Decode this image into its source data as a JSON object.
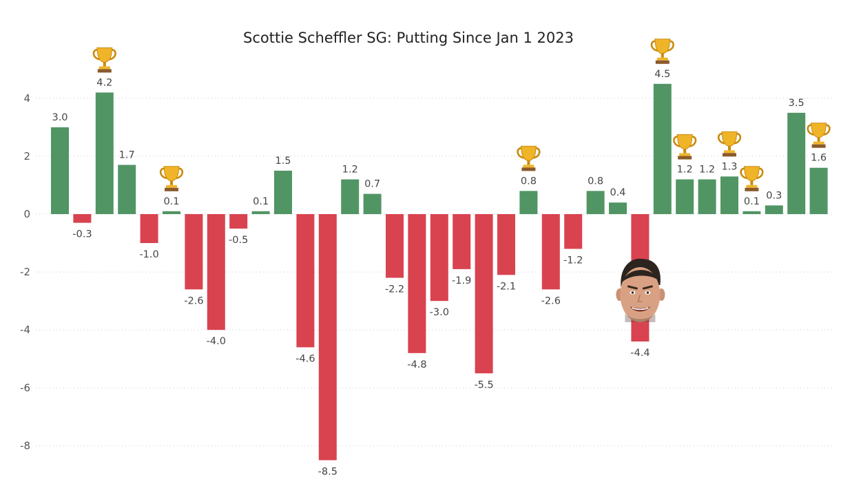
{
  "chart_data": {
    "type": "bar",
    "title": "Scottie Scheffler SG: Putting Since Jan 1 2023",
    "xlabel": "",
    "ylabel": "",
    "ylim": [
      -8.5,
      4.5
    ],
    "yticks": [
      4,
      2,
      0,
      -2,
      -4,
      -6,
      -8
    ],
    "grid": true,
    "legend": "none",
    "values": [
      3.0,
      -0.3,
      4.2,
      1.7,
      -1.0,
      0.1,
      -2.6,
      -4.0,
      -0.5,
      0.1,
      1.5,
      -4.6,
      -8.5,
      1.2,
      0.7,
      -2.2,
      -4.8,
      -3.0,
      -1.9,
      -5.5,
      -2.1,
      0.8,
      -2.6,
      -1.2,
      0.8,
      0.4,
      -4.4,
      4.5,
      1.2,
      1.2,
      1.3,
      0.1,
      0.3,
      3.5,
      1.6
    ],
    "labels": [
      "3.0",
      "-0.3",
      "4.2",
      "1.7",
      "-1.0",
      "0.1",
      "-2.6",
      "-4.0",
      "-0.5",
      "0.1",
      "1.5",
      "-4.6",
      "-8.5",
      "1.2",
      "0.7",
      "-2.2",
      "-4.8",
      "-3.0",
      "-1.9",
      "-5.5",
      "-2.1",
      "0.8",
      "-2.6",
      "-1.2",
      "0.8",
      "0.4",
      "-4.4",
      "4.5",
      "1.2",
      "1.2",
      "1.3",
      "0.1",
      "0.3",
      "3.5",
      "1.6"
    ],
    "wins": [
      2,
      5,
      21,
      27,
      28,
      30,
      31,
      34
    ],
    "face_marker_index": 26
  },
  "colors": {
    "positive": "#519564",
    "negative": "#d94350",
    "trophy": "#f0b429",
    "trophy_dark": "#c98a0c",
    "trophy_base": "#8a5a2b"
  },
  "icons": {
    "win_marker": "trophy-icon",
    "face_marker": "golfer-face-icon"
  }
}
